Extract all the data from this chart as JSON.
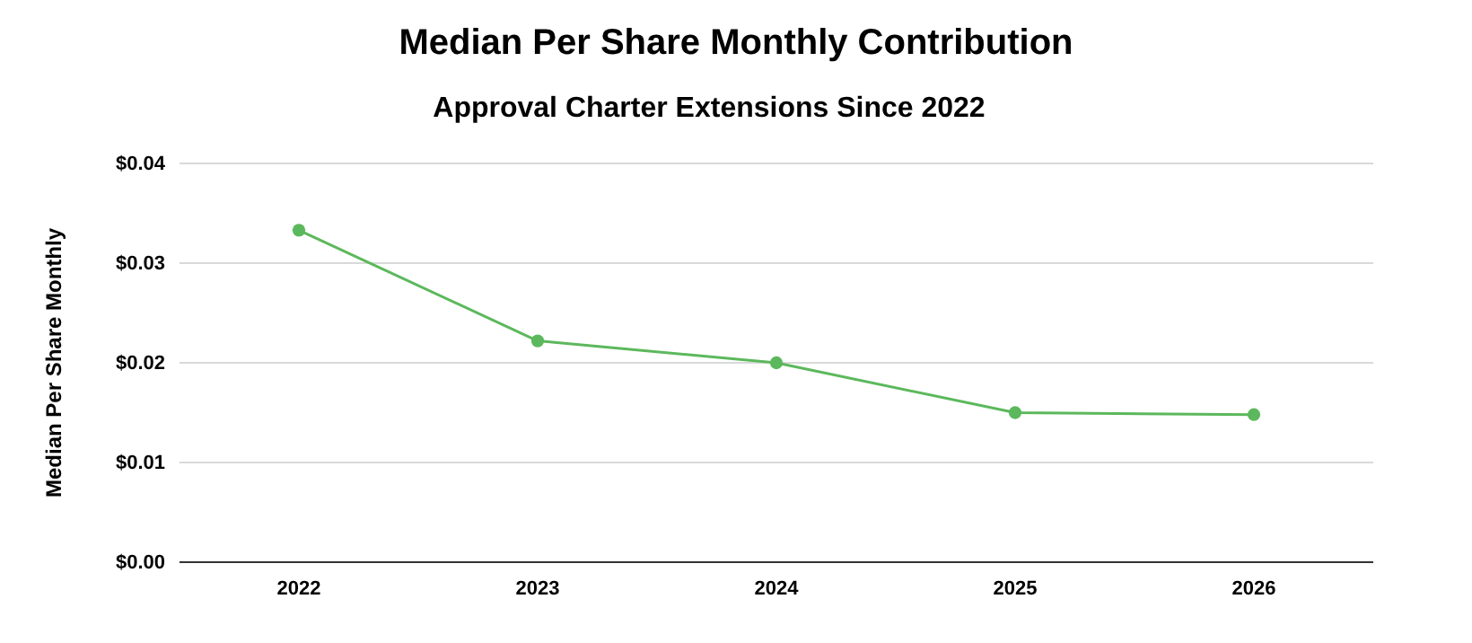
{
  "chart_data": {
    "type": "line",
    "title": "Median Per Share Monthly Contribution",
    "subtitle": "Approval Charter Extensions Since 2022",
    "ylabel": "Median Per Share Monthly",
    "categories": [
      "2022",
      "2023",
      "2024",
      "2025",
      "2026"
    ],
    "series": [
      {
        "color": "#5cb85c",
        "values": [
          0.0333,
          0.0222,
          0.02,
          0.015,
          0.0148
        ]
      }
    ],
    "ylim": [
      0,
      0.04
    ],
    "yticks": [
      {
        "value": 0,
        "label": "$0.00"
      },
      {
        "value": 0.01,
        "label": "$0.01"
      },
      {
        "value": 0.02,
        "label": "$0.02"
      },
      {
        "value": 0.03,
        "label": "$0.03"
      },
      {
        "value": 0.04,
        "label": "$0.04"
      }
    ],
    "grid": "y",
    "marker": "circle",
    "line_style": "solid"
  }
}
